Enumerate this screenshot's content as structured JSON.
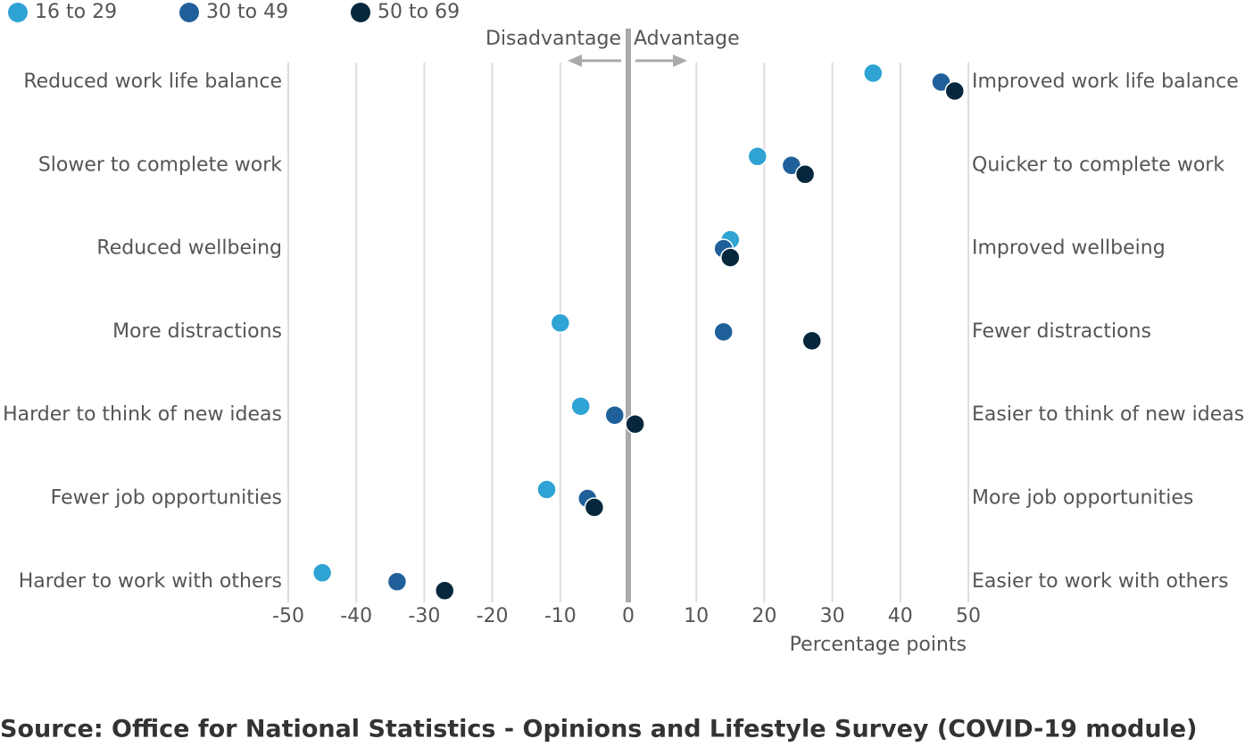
{
  "chart_data": {
    "type": "dot",
    "categories": [
      "Reduced work life balance",
      "Slower to complete work",
      "Reduced wellbeing",
      "More distractions",
      "Harder to think of new ideas",
      "Fewer job opportunities",
      "Harder to work with others"
    ],
    "right_labels": [
      "Improved work life balance",
      "Quicker to complete work",
      "Improved wellbeing",
      "Fewer distractions",
      "Easier to think of new ideas",
      "More job opportunities",
      "Easier to work with others"
    ],
    "series": [
      {
        "name": "16 to 29",
        "color": "#2ea3d4",
        "values": [
          36,
          19,
          15,
          -10,
          -7,
          -12,
          -45
        ]
      },
      {
        "name": "30 to 49",
        "color": "#20609a",
        "values": [
          46,
          24,
          14,
          14,
          -2,
          -6,
          -34
        ]
      },
      {
        "name": "50 to 69",
        "color": "#06283d",
        "values": [
          48,
          26,
          15,
          27,
          1,
          -5,
          -27
        ]
      }
    ],
    "xlim": [
      -50,
      50
    ],
    "xticks": [
      -50,
      -40,
      -30,
      -20,
      -10,
      0,
      10,
      20,
      30,
      40,
      50
    ],
    "x_label": "Percentage points",
    "left_annotation": "Disadvantage",
    "right_annotation": "Advantage",
    "grid": true,
    "legend": "top-left",
    "source": "Source: Office for National Statistics - Opinions and Lifestyle Survey (COVID-19 module)"
  }
}
